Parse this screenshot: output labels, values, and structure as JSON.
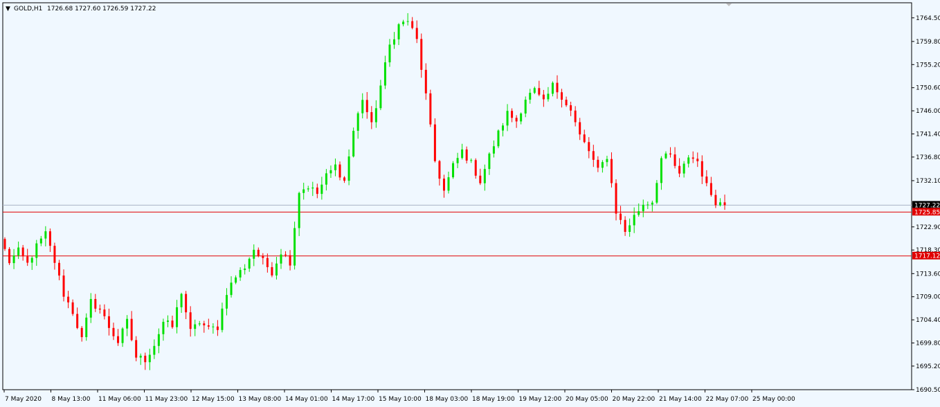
{
  "header": {
    "symbol": "GOLD,H1",
    "ohlc": "1726.68 1727.60 1726.59 1727.22"
  },
  "colors": {
    "background": "#f0f8ff",
    "bull": "#00e000",
    "bear": "#ff0000",
    "level_line": "#e00000",
    "price_line": "#a9b4c4",
    "current_label_bg": "#000000",
    "level_label_bg": "#e00000"
  },
  "chart_data": {
    "type": "candlestick",
    "symbol": "GOLD",
    "timeframe": "H1",
    "ylim": [
      1690.5,
      1767.5
    ],
    "y_ticks": [
      "1764.50",
      "1759.80",
      "1755.20",
      "1750.60",
      "1746.00",
      "1741.40",
      "1736.80",
      "1732.10",
      "1727.22",
      "1722.90",
      "1718.30",
      "1713.60",
      "1709.00",
      "1704.40",
      "1699.80",
      "1695.20",
      "1690.50"
    ],
    "x_labels": [
      "7 May 2020",
      "8 May 13:00",
      "11 May 06:00",
      "11 May 23:00",
      "12 May 15:00",
      "13 May 08:00",
      "14 May 01:00",
      "14 May 17:00",
      "15 May 10:00",
      "18 May 03:00",
      "18 May 19:00",
      "19 May 12:00",
      "20 May 05:00",
      "20 May 22:00",
      "21 May 14:00",
      "22 May 07:00",
      "25 May 00:00"
    ],
    "current_price": "1727.22",
    "levels": [
      {
        "price": 1725.85,
        "label": "1725.85"
      },
      {
        "price": 1717.12,
        "label": "1717.12"
      }
    ],
    "waypoints": [
      1720.5,
      1716.0,
      1718.0,
      1715.5,
      1719.0,
      1721.5,
      1716.0,
      1709.5,
      1706.0,
      1700.5,
      1708.0,
      1706.5,
      1703.0,
      1700.0,
      1704.0,
      1697.0,
      1696.5,
      1699.5,
      1704.0,
      1703.0,
      1710.0,
      1702.0,
      1704.0,
      1702.5,
      1703.0,
      1710.0,
      1713.0,
      1715.0,
      1718.5,
      1716.0,
      1714.0,
      1718.0,
      1716.0,
      1730.0,
      1731.0,
      1729.5,
      1733.0,
      1735.0,
      1732.0,
      1742.0,
      1748.5,
      1743.0,
      1751.0,
      1759.0,
      1763.0,
      1764.0,
      1760.0,
      1749.0,
      1736.0,
      1730.0,
      1735.0,
      1738.0,
      1735.5,
      1732.0,
      1737.0,
      1741.5,
      1745.5,
      1744.0,
      1748.5,
      1750.0,
      1747.5,
      1751.0,
      1749.0,
      1746.0,
      1741.0,
      1738.0,
      1734.0,
      1737.0,
      1726.0,
      1722.0,
      1725.0,
      1727.5,
      1728.0,
      1736.5,
      1737.0,
      1733.0,
      1737.0,
      1736.0,
      1731.0,
      1728.0,
      1727.22
    ],
    "candles_per_segment": 2
  }
}
